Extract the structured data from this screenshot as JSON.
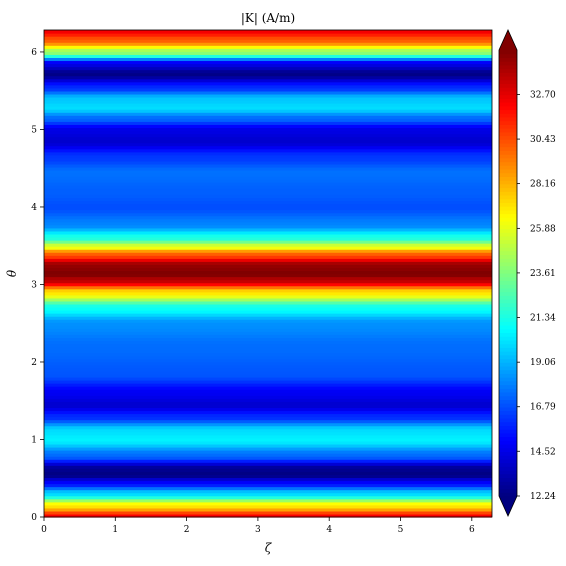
{
  "chart_data": {
    "type": "heatmap",
    "title": "|K| (A/m)",
    "xlabel": "ζ",
    "ylabel": "θ",
    "xlim": [
      0,
      6.2832
    ],
    "ylim": [
      0,
      6.2832
    ],
    "x_ticks": [
      0,
      1,
      2,
      3,
      4,
      5,
      6
    ],
    "y_ticks": [
      0,
      1,
      2,
      3,
      4,
      5,
      6
    ],
    "colormap": "jet",
    "colorbar": {
      "vmin": 12.24,
      "vmax": 34.97,
      "extend": "both",
      "ticks": [
        12.24,
        14.52,
        16.79,
        19.06,
        21.34,
        23.61,
        25.88,
        28.16,
        30.43,
        32.7
      ]
    },
    "profile_theta": [
      0.0,
      0.15,
      0.3,
      0.45,
      0.55,
      0.62,
      0.8,
      1.0,
      1.12,
      1.3,
      1.45,
      1.6,
      1.85,
      2.2,
      2.5,
      2.7,
      2.9,
      3.05,
      3.14,
      3.25,
      3.4,
      3.5,
      3.6,
      3.78,
      4.0,
      4.2,
      4.45,
      4.65,
      4.85,
      5.0,
      5.15,
      5.28,
      5.4,
      5.55,
      5.72,
      5.85,
      6.0,
      6.15,
      6.2832
    ],
    "profile_K": [
      32.5,
      27.0,
      20.0,
      15.0,
      12.3,
      12.6,
      17.5,
      20.5,
      20.0,
      16.0,
      14.0,
      14.8,
      17.0,
      17.5,
      18.3,
      21.0,
      27.0,
      33.5,
      35.0,
      34.5,
      30.0,
      25.5,
      21.5,
      18.0,
      16.8,
      17.2,
      17.6,
      16.3,
      14.0,
      14.5,
      17.5,
      20.0,
      19.5,
      16.0,
      12.4,
      14.5,
      24.0,
      30.0,
      32.5
    ]
  }
}
